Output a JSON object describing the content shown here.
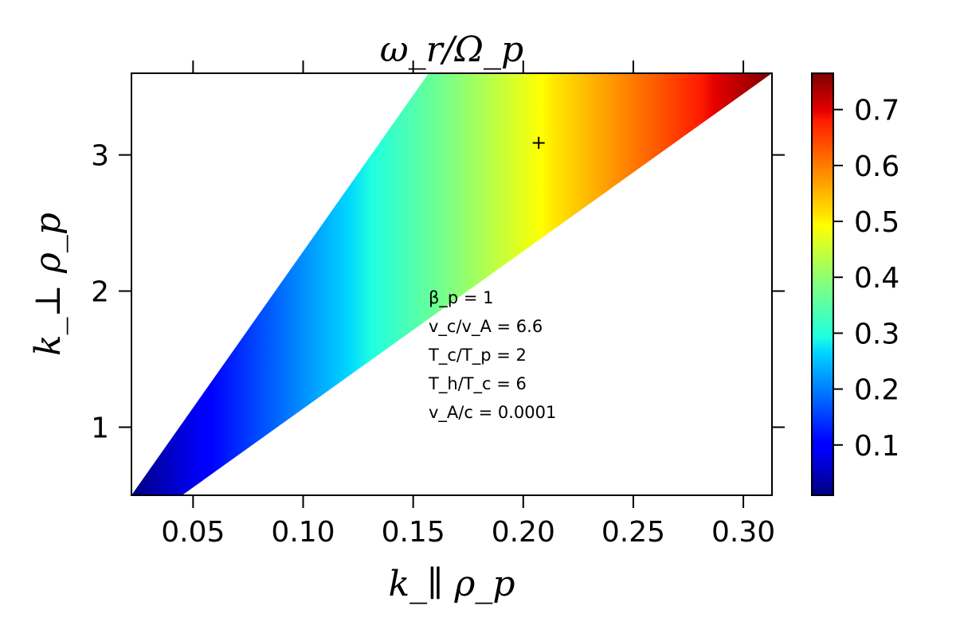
{
  "chart_data": {
    "type": "heatmap",
    "title": "ω_r/Ω_p",
    "xlabel": "k_∥ ρ_p",
    "ylabel": "k_⊥ ρ_p",
    "xlim": [
      0.022,
      0.313
    ],
    "ylim": [
      0.5,
      3.6
    ],
    "x_ticks": [
      "0.05",
      "0.10",
      "0.15",
      "0.20",
      "0.25",
      "0.30"
    ],
    "y_ticks": [
      "1",
      "2",
      "3"
    ],
    "colormap": "jet",
    "colorbar": {
      "range": [
        0.01,
        0.765
      ],
      "ticks": [
        "0.1",
        "0.2",
        "0.3",
        "0.4",
        "0.5",
        "0.6",
        "0.7"
      ]
    },
    "region_vertices": [
      {
        "x": 0.022,
        "y": 0.5
      },
      {
        "x": 0.045,
        "y": 0.5
      },
      {
        "x": 0.313,
        "y": 3.6
      },
      {
        "x": 0.157,
        "y": 3.6
      }
    ],
    "marker": {
      "x": 0.207,
      "y": 3.09,
      "symbol": "+"
    },
    "annotations": [
      "β_p = 1",
      "v_c/v_A = 6.6",
      "T_c/T_p = 2",
      "T_h/T_c = 6",
      "v_A/c = 0.0001"
    ]
  }
}
